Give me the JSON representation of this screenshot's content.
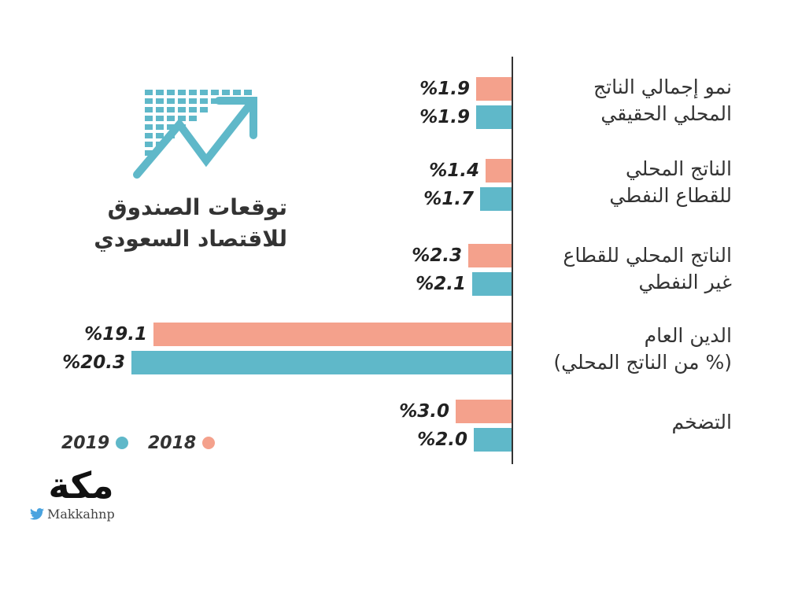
{
  "title_lines": [
    "توقعات الصندوق",
    "للاقتصاد السعودي"
  ],
  "legend": [
    {
      "name": "2018",
      "color": "#f4a18c"
    },
    {
      "name": "2019",
      "color": "#5fb8c9"
    }
  ],
  "colors": {
    "series_2018": "#f4a18c",
    "series_2019": "#5fb8c9",
    "axis": "#333333",
    "logo_gold": "#c8a46a"
  },
  "chart_data": {
    "type": "bar",
    "orientation": "horizontal",
    "categories": [
      [
        "نمو إجمالي الناتج",
        "المحلي الحقيقي"
      ],
      [
        "الناتج المحلي",
        "للقطاع النفطي"
      ],
      [
        "الناتج المحلي للقطاع",
        "غير النفطي"
      ],
      [
        "الدين العام",
        "(% من الناتج المحلي)"
      ],
      [
        "التضخم"
      ]
    ],
    "series": [
      {
        "name": "2018",
        "values": [
          1.9,
          1.4,
          2.3,
          19.1,
          3.0
        ],
        "labels": [
          "%1.9",
          "%1.4",
          "%2.3",
          "%19.1",
          "%3.0"
        ]
      },
      {
        "name": "2019",
        "values": [
          1.9,
          1.7,
          2.1,
          20.3,
          2.0
        ],
        "labels": [
          "%1.9",
          "%1.7",
          "%2.1",
          "%20.3",
          "%2.0"
        ]
      }
    ]
  },
  "logo": {
    "text": "مكة",
    "handle": "Makkahnp",
    "icon": "twitter-bird-icon"
  },
  "header_icon": "growth-chart-arrow-icon"
}
